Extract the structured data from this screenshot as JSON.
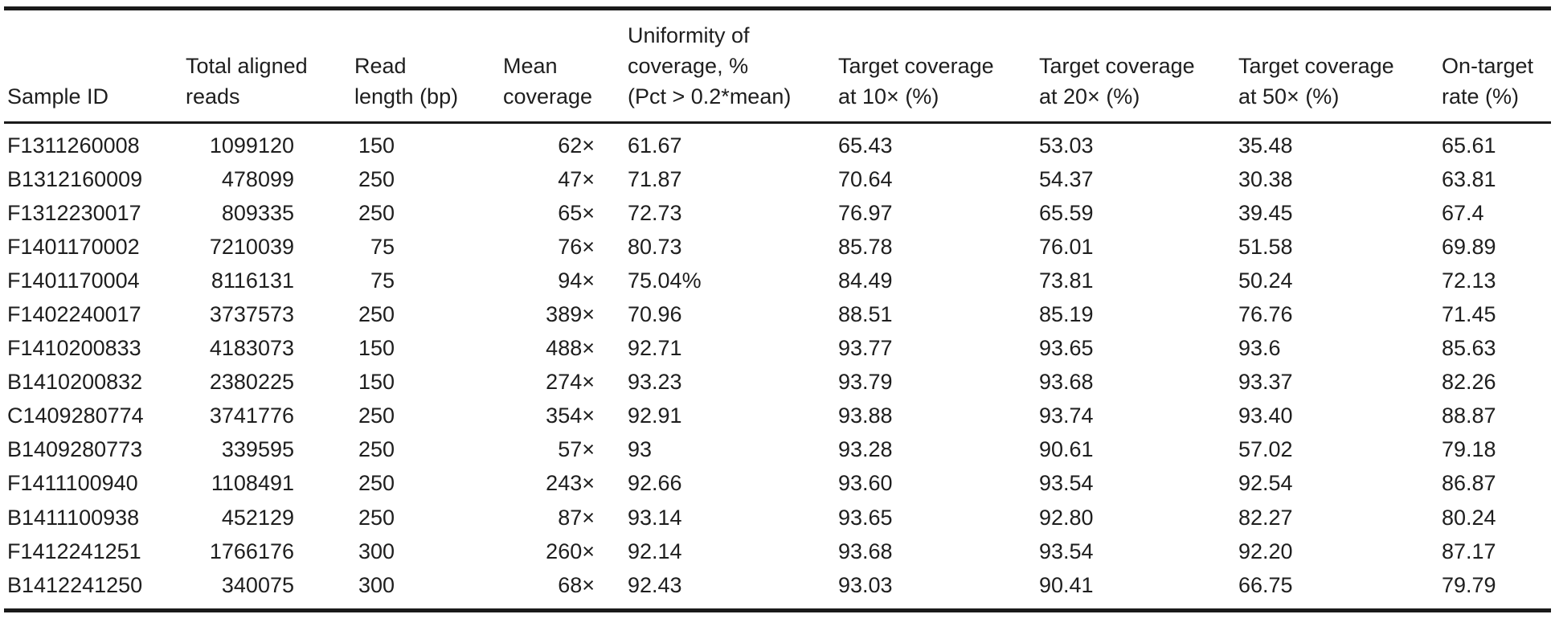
{
  "table": {
    "headers": [
      [
        "Sample ID"
      ],
      [
        "Total aligned",
        "reads"
      ],
      [
        "Read",
        "length (bp)"
      ],
      [
        "Mean",
        "coverage"
      ],
      [
        "Uniformity of",
        "coverage, %",
        "(Pct > 0.2*mean)"
      ],
      [
        "Target coverage",
        "at 10× (%)"
      ],
      [
        "Target coverage",
        "at 20× (%)"
      ],
      [
        "Target coverage",
        "at 50× (%)"
      ],
      [
        "On-target",
        "rate (%)"
      ]
    ],
    "rows": [
      [
        "F1311260008",
        "1099120",
        "150",
        "62×",
        "61.67",
        "65.43",
        "53.03",
        "35.48",
        "65.61"
      ],
      [
        "B1312160009",
        "478099",
        "250",
        "47×",
        "71.87",
        "70.64",
        "54.37",
        "30.38",
        "63.81"
      ],
      [
        "F1312230017",
        "809335",
        "250",
        "65×",
        "72.73",
        "76.97",
        "65.59",
        "39.45",
        "67.4"
      ],
      [
        "F1401170002",
        "7210039",
        "75",
        "76×",
        "80.73",
        "85.78",
        "76.01",
        "51.58",
        "69.89"
      ],
      [
        "F1401170004",
        "8116131",
        "75",
        "94×",
        "75.04%",
        "84.49",
        "73.81",
        "50.24",
        "72.13"
      ],
      [
        "F1402240017",
        "3737573",
        "250",
        "389×",
        "70.96",
        "88.51",
        "85.19",
        "76.76",
        "71.45"
      ],
      [
        "F1410200833",
        "4183073",
        "150",
        "488×",
        "92.71",
        "93.77",
        "93.65",
        "93.6",
        "85.63"
      ],
      [
        "B1410200832",
        "2380225",
        "150",
        "274×",
        "93.23",
        "93.79",
        "93.68",
        "93.37",
        "82.26"
      ],
      [
        "C1409280774",
        "3741776",
        "250",
        "354×",
        "92.91",
        "93.88",
        "93.74",
        "93.40",
        "88.87"
      ],
      [
        "B1409280773",
        "339595",
        "250",
        "57×",
        "93",
        "93.28",
        "90.61",
        "57.02",
        "79.18"
      ],
      [
        "F1411100940",
        "1108491",
        "250",
        "243×",
        "92.66",
        "93.60",
        "93.54",
        "92.54",
        "86.87"
      ],
      [
        "B1411100938",
        "452129",
        "250",
        "87×",
        "93.14",
        "93.65",
        "92.80",
        "82.27",
        "80.24"
      ],
      [
        "F1412241251",
        "1766176",
        "300",
        "260×",
        "92.14",
        "93.68",
        "93.54",
        "92.20",
        "87.17"
      ],
      [
        "B1412241250",
        "340075",
        "300",
        "68×",
        "92.43",
        "93.03",
        "90.41",
        "66.75",
        "79.79"
      ]
    ]
  }
}
